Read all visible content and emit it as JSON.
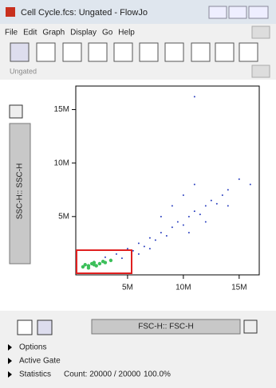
{
  "window": {
    "title": "Cell Cycle.fcs: Ungated - FlowJo"
  },
  "menu": [
    "File",
    "Edit",
    "Graph",
    "Display",
    "Go",
    "Help"
  ],
  "gate_name": "Ungated",
  "chart_data": {
    "type": "scatter",
    "xlabel": "FSC-H:: FSC-H",
    "ylabel": "SSC-H:: SSC-H",
    "xlim": [
      360000,
      16800000
    ],
    "ylim": [
      -450000,
      17200000
    ],
    "xticks": [
      {
        "value": 5000000,
        "label": "5M"
      },
      {
        "value": 10000000,
        "label": "10M"
      },
      {
        "value": 15000000,
        "label": "15M"
      }
    ],
    "yticks": [
      {
        "value": 5000000,
        "label": "5M"
      },
      {
        "value": 10000000,
        "label": "10M"
      },
      {
        "value": 15000000,
        "label": "15M"
      }
    ],
    "series": [
      {
        "color": "#2a3fbf",
        "x": [
          3000000,
          4000000,
          5000000,
          5500000,
          6000000,
          6500000,
          7000000,
          7500000,
          8000000,
          8500000,
          9000000,
          9500000,
          10000000,
          10500000,
          11000000,
          11500000,
          12000000,
          12500000,
          13000000,
          13500000,
          14000000,
          15000000,
          9000000,
          10000000,
          11000000,
          8000000,
          12000000,
          7000000,
          6000000,
          14000000,
          16000000,
          10500000,
          2000000,
          3500000,
          4500000,
          11000000
        ],
        "values": [
          1200000,
          1500000,
          2000000,
          1800000,
          2500000,
          2200000,
          3000000,
          2800000,
          3500000,
          3200000,
          4000000,
          4500000,
          4200000,
          5000000,
          5500000,
          5200000,
          6000000,
          6500000,
          6200000,
          7000000,
          7500000,
          8500000,
          6000000,
          7000000,
          8000000,
          5000000,
          4500000,
          2000000,
          1500000,
          6000000,
          8000000,
          3500000,
          800000,
          900000,
          1100000,
          16200000
        ]
      },
      {
        "color": "#3cbf5a",
        "x": [
          1000000,
          1500000,
          2000000,
          2500000,
          3000000,
          1200000,
          1800000,
          2200000,
          2800000,
          3500000,
          1500000,
          2000000
        ],
        "values": [
          300000,
          400000,
          500000,
          600000,
          700000,
          500000,
          600000,
          400000,
          800000,
          900000,
          200000,
          700000
        ]
      }
    ]
  },
  "panels": [
    "Options",
    "Active Gate",
    "Statistics"
  ],
  "stats": {
    "count": "Count: 20000 / 20000",
    "percent": "100.0%"
  }
}
